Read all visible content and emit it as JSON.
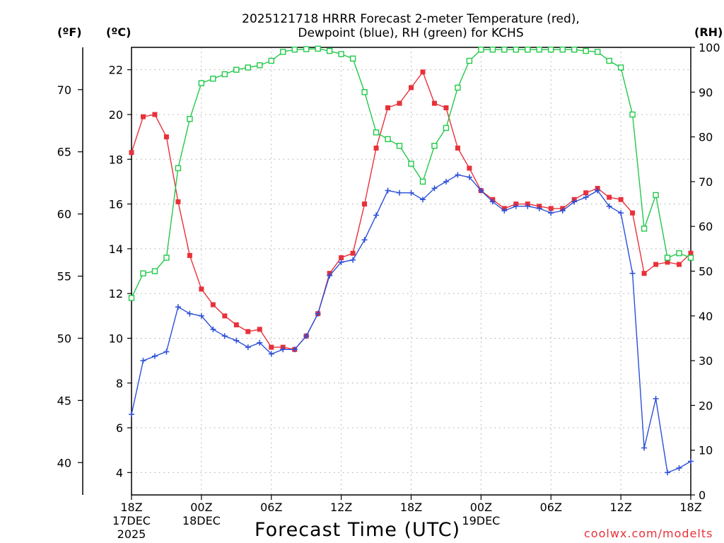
{
  "chart_data": {
    "type": "line",
    "title_line1": "2025121718 HRRR Forecast 2-meter Temperature (red),",
    "title_line2": "Dewpoint (blue), RH (green) for KCHS",
    "xlabel": "Forecast Time (UTC)",
    "ylabel_left_f": "(ºF)",
    "ylabel_left_c": "(ºC)",
    "ylabel_right": "(RH)",
    "credit": "coolwx.com/modelts",
    "x_range_hours": [
      0,
      48
    ],
    "x_ticks": [
      {
        "hour": 0,
        "label": "18Z",
        "sub1": "17DEC",
        "sub2": "2025"
      },
      {
        "hour": 6,
        "label": "00Z",
        "sub1": "18DEC",
        "sub2": ""
      },
      {
        "hour": 12,
        "label": "06Z",
        "sub1": "",
        "sub2": ""
      },
      {
        "hour": 18,
        "label": "12Z",
        "sub1": "",
        "sub2": ""
      },
      {
        "hour": 24,
        "label": "18Z",
        "sub1": "",
        "sub2": ""
      },
      {
        "hour": 30,
        "label": "00Z",
        "sub1": "19DEC",
        "sub2": ""
      },
      {
        "hour": 36,
        "label": "06Z",
        "sub1": "",
        "sub2": ""
      },
      {
        "hour": 42,
        "label": "12Z",
        "sub1": "",
        "sub2": ""
      },
      {
        "hour": 48,
        "label": "18Z",
        "sub1": "",
        "sub2": ""
      }
    ],
    "y_c_range": [
      3,
      23
    ],
    "y_c_ticks": [
      4,
      6,
      8,
      10,
      12,
      14,
      16,
      18,
      20,
      22
    ],
    "y_f_ticks": [
      40,
      45,
      50,
      55,
      60,
      65,
      70
    ],
    "y_rh_range": [
      0,
      100
    ],
    "y_rh_ticks": [
      0,
      10,
      20,
      30,
      40,
      50,
      60,
      70,
      80,
      90,
      100
    ],
    "grid": true,
    "hours": [
      0,
      1,
      2,
      3,
      4,
      5,
      6,
      7,
      8,
      9,
      10,
      11,
      12,
      13,
      14,
      15,
      16,
      17,
      18,
      19,
      20,
      21,
      22,
      23,
      24,
      25,
      26,
      27,
      28,
      29,
      30,
      31,
      32,
      33,
      34,
      35,
      36,
      37,
      38,
      39,
      40,
      41,
      42,
      43,
      44,
      45,
      46,
      47,
      48
    ],
    "series": [
      {
        "name": "Temperature",
        "units": "C",
        "color": "#e8313a",
        "marker": "filled-square",
        "values": [
          18.3,
          19.9,
          20.0,
          19.0,
          16.1,
          13.7,
          12.2,
          11.5,
          11.0,
          10.6,
          10.3,
          10.4,
          9.6,
          9.6,
          9.5,
          10.1,
          11.1,
          12.9,
          13.6,
          13.8,
          16.0,
          18.5,
          20.3,
          20.5,
          21.2,
          21.9,
          20.5,
          20.3,
          18.5,
          17.6,
          16.6,
          16.2,
          15.8,
          16.0,
          16.0,
          15.9,
          15.8,
          15.8,
          16.2,
          16.5,
          16.7,
          16.3,
          16.2,
          15.6,
          12.9,
          13.3,
          13.4,
          13.3,
          13.8
        ]
      },
      {
        "name": "Dewpoint",
        "units": "C",
        "color": "#2b4fd8",
        "marker": "plus",
        "values": [
          6.6,
          9.0,
          9.2,
          9.4,
          11.4,
          11.1,
          11.0,
          10.4,
          10.1,
          9.9,
          9.6,
          9.8,
          9.3,
          9.5,
          9.5,
          10.1,
          11.1,
          12.8,
          13.4,
          13.5,
          14.4,
          15.5,
          16.6,
          16.5,
          16.5,
          16.2,
          16.7,
          17.0,
          17.3,
          17.2,
          16.6,
          16.1,
          15.7,
          15.9,
          15.9,
          15.8,
          15.6,
          15.7,
          16.1,
          16.3,
          16.6,
          15.9,
          15.6,
          12.9,
          5.1,
          7.3,
          4.0,
          4.2,
          4.5
        ]
      },
      {
        "name": "RH",
        "units": "%",
        "color": "#22c94a",
        "marker": "open-square",
        "values": [
          44,
          49.5,
          50,
          53,
          73,
          84,
          92,
          93,
          94,
          95,
          95.5,
          96,
          97,
          99,
          99.5,
          99.6,
          99.7,
          99.2,
          98.5,
          97.5,
          90,
          81,
          79.5,
          78,
          74,
          70,
          78,
          82,
          91,
          97,
          99.5,
          99.5,
          99.5,
          99.5,
          99.5,
          99.5,
          99.5,
          99.5,
          99.5,
          99.2,
          99,
          97,
          95.5,
          85,
          59.5,
          67,
          53,
          54,
          53
        ]
      }
    ]
  }
}
